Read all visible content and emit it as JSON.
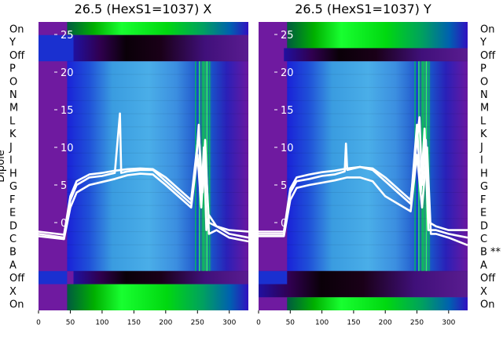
{
  "chart_data": [
    {
      "type": "heatmap",
      "title": "26.5 (HexS1=1037) X",
      "ylabel": "Dipole",
      "xlim": [
        0,
        330
      ],
      "x_ticks": [
        0,
        50,
        100,
        150,
        200,
        250,
        300
      ],
      "inner_ylim": [
        -5,
        27
      ],
      "inner_y_ticks": [
        0,
        5,
        10,
        15,
        20,
        25
      ],
      "row_labels": [
        "On",
        "Y",
        "Off",
        "P",
        "O",
        "N",
        "M",
        "L",
        "K",
        "J",
        "I",
        "H",
        "G",
        "F",
        "E",
        "D",
        "C",
        "B",
        "A",
        "Off",
        "X",
        "On"
      ],
      "band_colors": {
        "off": "#1a0020",
        "on": "#00dd00",
        "dipole": "#2f7fd8",
        "background": "#6f1aa0"
      },
      "series": [
        {
          "x": [
            0,
            40,
            50,
            60,
            80,
            100,
            120,
            128,
            130,
            140,
            160,
            180,
            200,
            220,
            240,
            248,
            252,
            256,
            260,
            264,
            268,
            280,
            300,
            330
          ],
          "y": [
            -1.5,
            -2,
            3,
            5,
            6,
            6.2,
            6.6,
            14.5,
            6.6,
            6.8,
            7,
            7,
            5.5,
            4,
            2.5,
            8,
            13,
            3,
            10,
            -1,
            1,
            -0.5,
            -1.5,
            -2
          ]
        },
        {
          "x": [
            0,
            40,
            50,
            60,
            80,
            100,
            120,
            140,
            160,
            180,
            200,
            220,
            240,
            250,
            256,
            262,
            268,
            280,
            300,
            330
          ],
          "y": [
            -1.8,
            -2.2,
            2,
            4,
            5,
            5.4,
            5.8,
            6.3,
            6.5,
            6.4,
            5,
            3.5,
            2,
            9,
            2,
            11,
            -1.5,
            -1,
            -2,
            -2.5
          ]
        },
        {
          "x": [
            0,
            40,
            50,
            60,
            80,
            100,
            120,
            140,
            160,
            180,
            200,
            220,
            240,
            252,
            258,
            262,
            268,
            280,
            300,
            330
          ],
          "y": [
            -1.2,
            -1.6,
            3.5,
            5.5,
            6.4,
            6.6,
            6.9,
            7.1,
            7.2,
            7.1,
            6,
            4.5,
            3,
            12,
            4,
            9.5,
            0,
            -0.5,
            -1,
            -1.2
          ]
        }
      ]
    },
    {
      "type": "heatmap",
      "title": "26.5 (HexS1=1037) Y",
      "ylabel": "",
      "xlim": [
        0,
        330
      ],
      "x_ticks": [
        0,
        50,
        100,
        150,
        200,
        250,
        300
      ],
      "inner_ylim": [
        -5,
        27
      ],
      "inner_y_ticks": [
        0,
        5,
        10,
        15,
        20,
        25
      ],
      "row_labels": [
        "On",
        "Y",
        "Off",
        "P",
        "O",
        "N",
        "M",
        "L",
        "K",
        "J",
        "I",
        "H",
        "G",
        "F",
        "E",
        "D",
        "C",
        "B **",
        "A",
        "Off",
        "X",
        "On"
      ],
      "band_colors": {
        "off": "#1a0020",
        "on": "#00dd00",
        "dipole": "#2f7fd8",
        "background": "#6f1aa0"
      },
      "series": [
        {
          "x": [
            0,
            40,
            50,
            60,
            80,
            100,
            120,
            136,
            138,
            140,
            160,
            180,
            200,
            220,
            240,
            250,
            256,
            262,
            268,
            280,
            300,
            330
          ],
          "y": [
            -1.5,
            -1.5,
            4,
            5.5,
            5.8,
            6.2,
            6.4,
            6.8,
            10.5,
            7,
            7.4,
            7,
            5.5,
            4,
            2.5,
            13,
            4,
            12.5,
            -1,
            -1,
            -1.5,
            -2
          ]
        },
        {
          "x": [
            0,
            40,
            50,
            60,
            80,
            100,
            120,
            140,
            160,
            180,
            200,
            220,
            240,
            250,
            258,
            266,
            272,
            280,
            300,
            330
          ],
          "y": [
            -1.8,
            -1.8,
            3,
            4.6,
            5,
            5.3,
            5.6,
            6,
            6,
            5.5,
            3.5,
            2.5,
            1.5,
            9,
            2,
            10,
            -1.5,
            -1.5,
            -2,
            -3
          ]
        },
        {
          "x": [
            0,
            40,
            50,
            60,
            80,
            100,
            120,
            140,
            160,
            180,
            200,
            220,
            240,
            254,
            258,
            264,
            270,
            280,
            300,
            330
          ],
          "y": [
            -1.2,
            -1.2,
            4.5,
            6,
            6.4,
            6.7,
            6.9,
            7.2,
            7.4,
            7.2,
            6,
            4.5,
            3,
            14,
            5,
            11,
            0,
            -0.5,
            -1,
            -1
          ]
        }
      ]
    }
  ]
}
